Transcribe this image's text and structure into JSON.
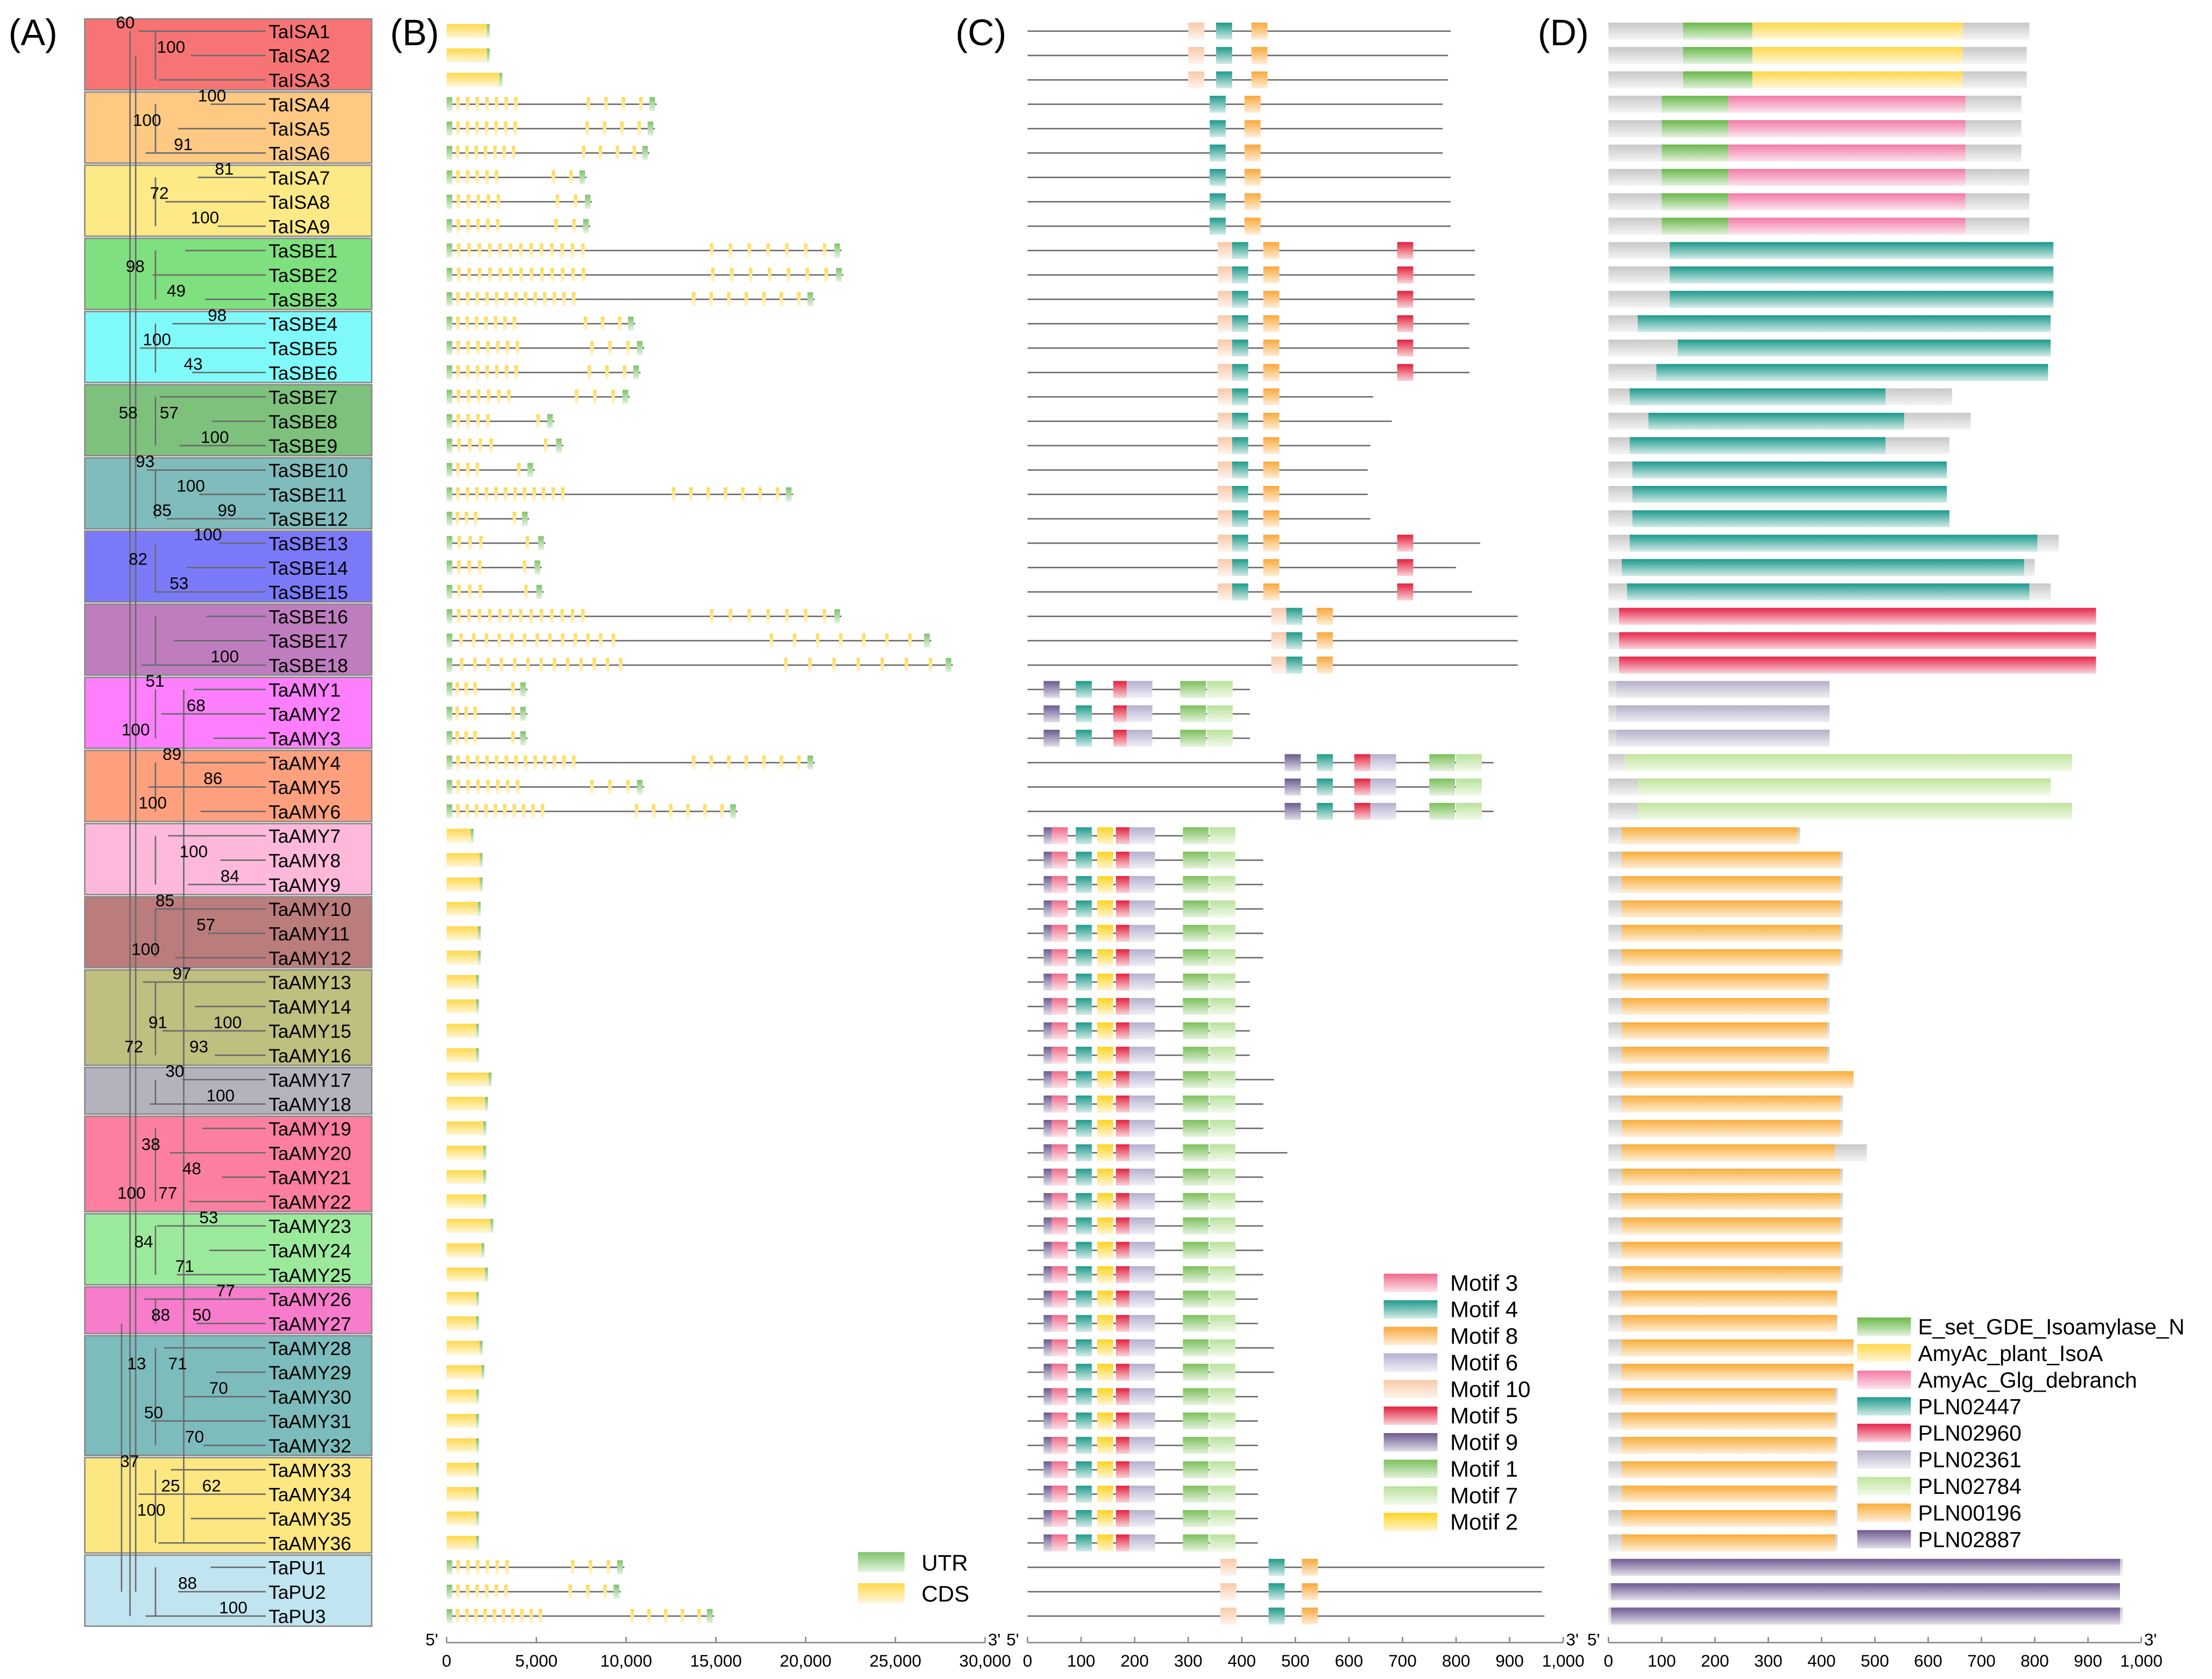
{
  "panel_labels": [
    "(A)",
    "(B)",
    "(C)",
    "(D)"
  ],
  "genes": [
    "TaISA1",
    "TaISA2",
    "TaISA3",
    "TaISA4",
    "TaISA5",
    "TaISA6",
    "TaISA7",
    "TaISA8",
    "TaISA9",
    "TaSBE1",
    "TaSBE2",
    "TaSBE3",
    "TaSBE4",
    "TaSBE5",
    "TaSBE6",
    "TaSBE7",
    "TaSBE8",
    "TaSBE9",
    "TaSBE10",
    "TaSBE11",
    "TaSBE12",
    "TaSBE13",
    "TaSBE14",
    "TaSBE15",
    "TaSBE16",
    "TaSBE17",
    "TaSBE18",
    "TaAMY1",
    "TaAMY2",
    "TaAMY3",
    "TaAMY4",
    "TaAMY5",
    "TaAMY6",
    "TaAMY7",
    "TaAMY8",
    "TaAMY9",
    "TaAMY10",
    "TaAMY11",
    "TaAMY12",
    "TaAMY13",
    "TaAMY14",
    "TaAMY15",
    "TaAMY16",
    "TaAMY17",
    "TaAMY18",
    "TaAMY19",
    "TaAMY20",
    "TaAMY21",
    "TaAMY22",
    "TaAMY23",
    "TaAMY24",
    "TaAMY25",
    "TaAMY26",
    "TaAMY27",
    "TaAMY28",
    "TaAMY29",
    "TaAMY30",
    "TaAMY31",
    "TaAMY32",
    "TaAMY33",
    "TaAMY34",
    "TaAMY35",
    "TaAMY36",
    "TaPU1",
    "TaPU2",
    "TaPU3"
  ],
  "clade_colors": [
    "#f87474",
    "#fdc983",
    "#fde985",
    "#7ee07e",
    "#7ff9f9",
    "#7dc17d",
    "#7fbcbb",
    "#7a7af9",
    "#bf7dbf",
    "#fd7ffd",
    "#fea07d",
    "#fdb8dc",
    "#bb7c7c",
    "#bfbf80",
    "#b3b3bd",
    "#fd7f9f",
    "#9bea9b",
    "#f87ccc",
    "#7cbcbc",
    "#fde780",
    "#c0e4f0"
  ],
  "bootstrap_labels": [
    {
      "value": "60",
      "row": 0
    },
    {
      "value": "100",
      "row": 1
    },
    {
      "value": "100",
      "row": 3
    },
    {
      "value": "100",
      "row": 4
    },
    {
      "value": "91",
      "row": 5
    },
    {
      "value": "81",
      "row": 6
    },
    {
      "value": "72",
      "row": 7
    },
    {
      "value": "100",
      "row": 8
    },
    {
      "value": "98",
      "row": 10
    },
    {
      "value": "49",
      "row": 11
    },
    {
      "value": "98",
      "row": 12
    },
    {
      "value": "100",
      "row": 13
    },
    {
      "value": "43",
      "row": 14
    },
    {
      "value": "58",
      "row": 16
    },
    {
      "value": "57",
      "row": 16
    },
    {
      "value": "100",
      "row": 17
    },
    {
      "value": "93",
      "row": 18
    },
    {
      "value": "100",
      "row": 19
    },
    {
      "value": "99",
      "row": 20
    },
    {
      "value": "85",
      "row": 20
    },
    {
      "value": "100",
      "row": 21
    },
    {
      "value": "82",
      "row": 22
    },
    {
      "value": "53",
      "row": 23
    },
    {
      "value": "100",
      "row": 26
    },
    {
      "value": "51",
      "row": 27
    },
    {
      "value": "68",
      "row": 28
    },
    {
      "value": "100",
      "row": 29
    },
    {
      "value": "89",
      "row": 30
    },
    {
      "value": "86",
      "row": 31
    },
    {
      "value": "100",
      "row": 32
    },
    {
      "value": "100",
      "row": 34
    },
    {
      "value": "84",
      "row": 35
    },
    {
      "value": "85",
      "row": 36
    },
    {
      "value": "57",
      "row": 37
    },
    {
      "value": "100",
      "row": 38
    },
    {
      "value": "97",
      "row": 39
    },
    {
      "value": "100",
      "row": 41
    },
    {
      "value": "91",
      "row": 41
    },
    {
      "value": "93",
      "row": 42
    },
    {
      "value": "72",
      "row": 42
    },
    {
      "value": "30",
      "row": 43
    },
    {
      "value": "100",
      "row": 44
    },
    {
      "value": "38",
      "row": 46
    },
    {
      "value": "48",
      "row": 47
    },
    {
      "value": "100",
      "row": 48
    },
    {
      "value": "77",
      "row": 48
    },
    {
      "value": "53",
      "row": 49
    },
    {
      "value": "84",
      "row": 50
    },
    {
      "value": "71",
      "row": 51
    },
    {
      "value": "77",
      "row": 52
    },
    {
      "value": "88",
      "row": 53
    },
    {
      "value": "50",
      "row": 53
    },
    {
      "value": "13",
      "row": 55
    },
    {
      "value": "71",
      "row": 55
    },
    {
      "value": "70",
      "row": 56
    },
    {
      "value": "50",
      "row": 57
    },
    {
      "value": "70",
      "row": 58
    },
    {
      "value": "37",
      "row": 59
    },
    {
      "value": "25",
      "row": 60
    },
    {
      "value": "62",
      "row": 60
    },
    {
      "value": "100",
      "row": 61
    },
    {
      "value": "88",
      "row": 64
    },
    {
      "value": "100",
      "row": 65
    }
  ],
  "chart_data": [
    {
      "panel": "B",
      "type": "gene structure",
      "xlim": [
        0,
        30000
      ],
      "ticks": [
        "0",
        "5,000",
        "10,000",
        "15,000",
        "20,000",
        "25,000",
        "30,000"
      ],
      "end5": "5'",
      "end3": "3'",
      "legend": [
        {
          "name": "UTR",
          "color": "#7ec36a"
        },
        {
          "name": "CDS",
          "color": "#ffd84a"
        }
      ],
      "gene_lengths_bp": [
        2400,
        2400,
        3100,
        11700,
        11600,
        11300,
        7800,
        8100,
        8000,
        22000,
        22100,
        20500,
        10500,
        11000,
        10800,
        10200,
        6000,
        6500,
        4900,
        19300,
        4600,
        5500,
        5300,
        5400,
        22000,
        27000,
        28200,
        4500,
        4500,
        4500,
        20500,
        11000,
        16200,
        1500,
        2000,
        2000,
        1900,
        1900,
        1900,
        1800,
        1800,
        1800,
        1800,
        2500,
        2300,
        2200,
        2200,
        2200,
        2200,
        2600,
        2100,
        2300,
        1800,
        1800,
        2000,
        2100,
        1800,
        1800,
        1800,
        1800,
        1800,
        1800,
        1800,
        9900,
        9700,
        14900
      ]
    },
    {
      "panel": "C",
      "type": "conserved motifs",
      "xlim": [
        0,
        1000
      ],
      "ticks": [
        "0",
        "100",
        "200",
        "300",
        "400",
        "500",
        "600",
        "700",
        "800",
        "900",
        "1,000"
      ],
      "end5": "5'",
      "end3": "3'",
      "protein_lengths_aa": [
        790,
        785,
        785,
        775,
        775,
        775,
        790,
        790,
        790,
        835,
        835,
        835,
        825,
        825,
        825,
        645,
        680,
        640,
        635,
        635,
        640,
        845,
        800,
        830,
        915,
        915,
        915,
        415,
        415,
        415,
        870,
        830,
        870,
        360,
        440,
        440,
        440,
        440,
        440,
        415,
        415,
        415,
        415,
        460,
        440,
        440,
        485,
        440,
        440,
        440,
        440,
        440,
        430,
        430,
        460,
        460,
        430,
        430,
        430,
        430,
        430,
        430,
        430,
        965,
        960,
        965
      ],
      "legend": [
        {
          "name": "Motif 3",
          "color": "#f06b8a"
        },
        {
          "name": "Motif 4",
          "color": "#1f9a8a"
        },
        {
          "name": "Motif 8",
          "color": "#f9a83a"
        },
        {
          "name": "Motif 6",
          "color": "#b4b0cf"
        },
        {
          "name": "Motif 10",
          "color": "#f8c9a8"
        },
        {
          "name": "Motif 5",
          "color": "#e2213d"
        },
        {
          "name": "Motif 9",
          "color": "#6a5a8f"
        },
        {
          "name": "Motif 1",
          "color": "#7bc05a"
        },
        {
          "name": "Motif 7",
          "color": "#b8e29a"
        },
        {
          "name": "Motif 2",
          "color": "#ffd322"
        }
      ]
    },
    {
      "panel": "D",
      "type": "conserved domains",
      "xlim": [
        0,
        1000
      ],
      "ticks": [
        "0",
        "100",
        "200",
        "300",
        "400",
        "500",
        "600",
        "700",
        "800",
        "900",
        "1,000"
      ],
      "end5": "5'",
      "end3": "3'",
      "legend": [
        {
          "name": "E_set_GDE_Isoamylase_N",
          "color": "#6ab84a"
        },
        {
          "name": "AmyAc_plant_IsoA",
          "color": "#ffd84a"
        },
        {
          "name": "AmyAc_Glg_debranch",
          "color": "#f27aa7"
        },
        {
          "name": "PLN02447",
          "color": "#1c9a8c"
        },
        {
          "name": "PLN02960",
          "color": "#e8244a"
        },
        {
          "name": "PLN02361",
          "color": "#b5b0c8"
        },
        {
          "name": "PLN02784",
          "color": "#bfe49a"
        },
        {
          "name": "PLN00196",
          "color": "#f9ad3a"
        },
        {
          "name": "PLN02887",
          "color": "#6f5a93"
        }
      ]
    }
  ]
}
